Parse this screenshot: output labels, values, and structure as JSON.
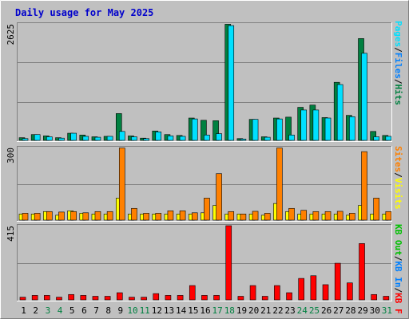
{
  "title": "Daily usage for May 2025",
  "colors": {
    "outer_bg": "#c0c0c0",
    "plot_bg": "#c0c0c0",
    "title": "#0000cc",
    "hits": "#008040",
    "files": "#0080ff",
    "pages": "#00e0ff",
    "visits": "#ffff00",
    "sites": "#ff8000",
    "kb": "#ff0000",
    "kb_in": "#0080ff",
    "kb_out": "#00c000",
    "weekday": "#000000",
    "weekend": "#008040",
    "grid": "#808080"
  },
  "chart_data": [
    {
      "type": "bar",
      "panel": "hits-files-pages",
      "y_max_label": "2625",
      "ylim": [
        0,
        2625
      ],
      "legend": {
        "pages": "Pages",
        "files": "Files",
        "hits": "Hits",
        "sep1": "/",
        "sep2": "/"
      },
      "categories": [
        "1",
        "2",
        "3",
        "4",
        "5",
        "6",
        "7",
        "8",
        "9",
        "10",
        "11",
        "12",
        "13",
        "14",
        "15",
        "16",
        "17",
        "18",
        "19",
        "20",
        "21",
        "22",
        "23",
        "24",
        "25",
        "26",
        "27",
        "28",
        "29",
        "30",
        "31"
      ],
      "series": [
        {
          "name": "Hits",
          "key": "hits",
          "values": [
            60,
            130,
            100,
            60,
            160,
            120,
            80,
            90,
            600,
            100,
            50,
            210,
            130,
            110,
            500,
            450,
            440,
            2600,
            40,
            470,
            80,
            500,
            520,
            740,
            790,
            510,
            1300,
            560,
            2280,
            200,
            110
          ]
        },
        {
          "name": "Pages",
          "key": "pages",
          "values": [
            40,
            130,
            80,
            50,
            160,
            90,
            70,
            90,
            200,
            80,
            40,
            190,
            100,
            90,
            480,
            120,
            150,
            2570,
            30,
            470,
            70,
            480,
            120,
            680,
            680,
            500,
            1250,
            530,
            1950,
            80,
            90
          ]
        }
      ]
    },
    {
      "type": "bar",
      "panel": "visits-sites",
      "y_max_label": "300",
      "ylim": [
        0,
        300
      ],
      "legend": {
        "sites": "Sites",
        "visits": "Visits",
        "sep": "/"
      },
      "categories": [
        "1",
        "2",
        "3",
        "4",
        "5",
        "6",
        "7",
        "8",
        "9",
        "10",
        "11",
        "12",
        "13",
        "14",
        "15",
        "16",
        "17",
        "18",
        "19",
        "20",
        "21",
        "22",
        "23",
        "24",
        "25",
        "26",
        "27",
        "28",
        "29",
        "30",
        "31"
      ],
      "series": [
        {
          "name": "Visits",
          "key": "visits",
          "values": [
            25,
            25,
            35,
            20,
            38,
            28,
            25,
            25,
            90,
            25,
            25,
            25,
            25,
            25,
            25,
            30,
            60,
            25,
            25,
            25,
            20,
            68,
            35,
            25,
            25,
            25,
            25,
            20,
            60,
            25,
            25
          ]
        },
        {
          "name": "Sites",
          "key": "sites",
          "values": [
            28,
            28,
            35,
            33,
            35,
            30,
            35,
            35,
            295,
            48,
            28,
            28,
            38,
            38,
            30,
            90,
            190,
            35,
            25,
            36,
            28,
            295,
            48,
            40,
            35,
            35,
            36,
            28,
            280,
            90,
            35
          ]
        }
      ]
    },
    {
      "type": "bar",
      "panel": "kbytes",
      "y_max_label": "415",
      "ylim": [
        0,
        415
      ],
      "legend": {
        "kb_out": "KB Out",
        "kb_in": "KB In",
        "kb": "KB F",
        "sep1": "/",
        "sep2": "/"
      },
      "categories": [
        "1",
        "2",
        "3",
        "4",
        "5",
        "6",
        "7",
        "8",
        "9",
        "10",
        "11",
        "12",
        "13",
        "14",
        "15",
        "16",
        "17",
        "18",
        "19",
        "20",
        "21",
        "22",
        "23",
        "24",
        "25",
        "26",
        "27",
        "28",
        "29",
        "30",
        "31"
      ],
      "series": [
        {
          "name": "KB F",
          "key": "kb",
          "values": [
            15,
            25,
            25,
            15,
            30,
            25,
            20,
            20,
            40,
            15,
            15,
            35,
            25,
            25,
            80,
            25,
            25,
            415,
            20,
            80,
            20,
            80,
            40,
            120,
            135,
            85,
            205,
            95,
            315,
            30,
            20
          ]
        }
      ]
    }
  ],
  "x_axis": {
    "labels": [
      "1",
      "2",
      "3",
      "4",
      "5",
      "6",
      "7",
      "8",
      "9",
      "10",
      "11",
      "12",
      "13",
      "14",
      "15",
      "16",
      "17",
      "18",
      "19",
      "20",
      "21",
      "22",
      "23",
      "24",
      "25",
      "26",
      "27",
      "28",
      "29",
      "30",
      "31"
    ],
    "weekend_days": [
      3,
      4,
      10,
      11,
      17,
      18,
      24,
      25,
      31
    ]
  }
}
